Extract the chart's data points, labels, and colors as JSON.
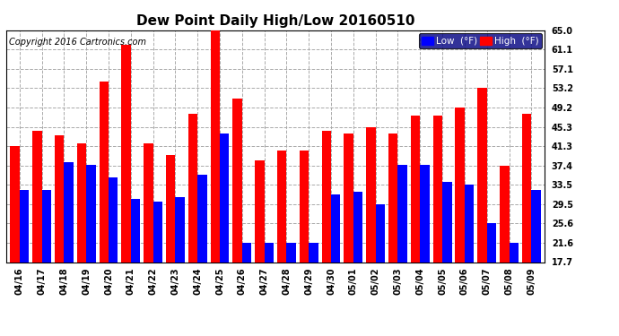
{
  "title": "Dew Point Daily High/Low 20160510",
  "copyright": "Copyright 2016 Cartronics.com",
  "dates": [
    "04/16",
    "04/17",
    "04/18",
    "04/19",
    "04/20",
    "04/21",
    "04/22",
    "04/23",
    "04/24",
    "04/25",
    "04/26",
    "04/27",
    "04/28",
    "04/29",
    "04/30",
    "05/01",
    "05/02",
    "05/03",
    "05/04",
    "05/05",
    "05/06",
    "05/07",
    "05/08",
    "05/09"
  ],
  "high_values": [
    41.3,
    44.5,
    43.5,
    42.0,
    54.5,
    62.0,
    42.0,
    39.5,
    48.0,
    65.0,
    51.0,
    38.5,
    40.5,
    40.5,
    44.5,
    44.0,
    45.3,
    44.0,
    47.5,
    47.5,
    49.2,
    53.2,
    37.4,
    48.0
  ],
  "low_values": [
    32.5,
    32.5,
    38.0,
    37.5,
    35.0,
    30.5,
    30.0,
    31.0,
    35.5,
    44.0,
    21.6,
    21.6,
    21.6,
    21.6,
    31.5,
    32.0,
    29.5,
    37.5,
    37.5,
    34.0,
    33.5,
    25.6,
    21.6,
    32.5
  ],
  "high_color": "#ff0000",
  "low_color": "#0000ff",
  "bg_color": "#ffffff",
  "grid_color": "#aaaaaa",
  "yticks": [
    17.7,
    21.6,
    25.6,
    29.5,
    33.5,
    37.4,
    41.3,
    45.3,
    49.2,
    53.2,
    57.1,
    61.1,
    65.0
  ],
  "ymin": 17.7,
  "ymax": 65.0,
  "bar_width": 0.42,
  "legend_low_label": "Low  (°F)",
  "legend_high_label": "High  (°F)",
  "title_fontsize": 11,
  "tick_fontsize": 7,
  "copyright_fontsize": 7
}
